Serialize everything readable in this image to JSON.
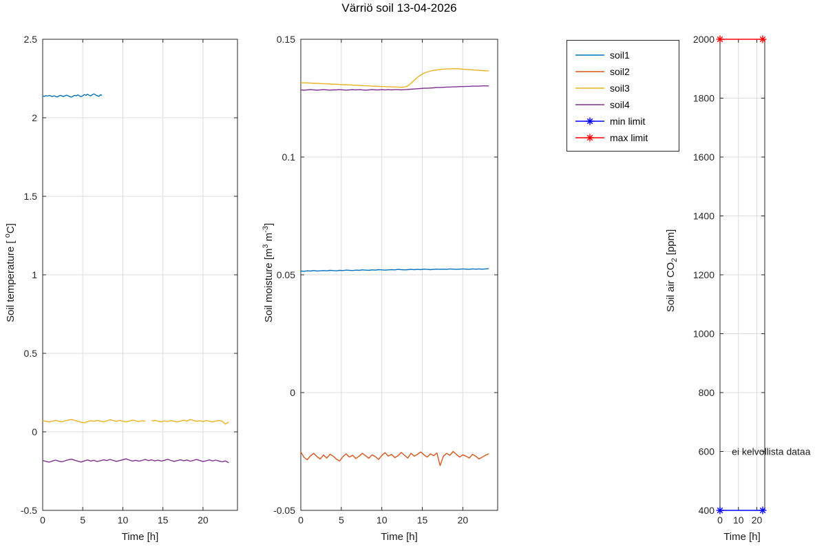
{
  "title": "Värriö soil 13-04-2026",
  "legend": {
    "entries": [
      {
        "label": "soil1",
        "color": "#0072BD",
        "marker": false
      },
      {
        "label": "soil2",
        "color": "#D95319",
        "marker": false
      },
      {
        "label": "soil3",
        "color": "#EDB120",
        "marker": false
      },
      {
        "label": "soil4",
        "color": "#7E2F8E",
        "marker": false
      },
      {
        "label": "min limit",
        "color": "#0000FF",
        "marker": true
      },
      {
        "label": "max limit",
        "color": "#FF0000",
        "marker": true
      }
    ]
  },
  "chart_data": [
    {
      "type": "line",
      "name": "soil-temperature",
      "xlabel": "Time [h]",
      "ylabel_text": "Soil temperature [ °C]",
      "ylabel_parts": [
        {
          "t": "Soil temperature [ "
        },
        {
          "t": "o",
          "sup": true
        },
        {
          "t": "C]"
        }
      ],
      "xlim": [
        0,
        24.3
      ],
      "ylim": [
        -0.5,
        2.5
      ],
      "xticks": [
        0,
        5,
        10,
        15,
        20
      ],
      "xtick_labels": [
        "0",
        "5",
        "10",
        "15",
        "20"
      ],
      "yticks": [
        -0.5,
        0,
        0.5,
        1,
        1.5,
        2,
        2.5
      ],
      "ytick_labels": [
        "-0.5",
        "0",
        "0.5",
        "1",
        "1.5",
        "2",
        "2.5"
      ],
      "grid": true,
      "series": [
        {
          "name": "soil1",
          "color": "#0072BD",
          "x0": 0,
          "dx": 0.2,
          "y": [
            2.14,
            2.136,
            2.141,
            2.138,
            2.142,
            2.139,
            2.135,
            2.14,
            2.137,
            2.132,
            2.138,
            2.143,
            2.139,
            2.135,
            2.141,
            2.144,
            2.139,
            2.135,
            2.131,
            2.138,
            2.143,
            2.14,
            2.146,
            2.139,
            2.134,
            2.141,
            2.148,
            2.143,
            2.15,
            2.144,
            2.139,
            2.147,
            2.152,
            2.146,
            2.141,
            2.137,
            2.146,
            2.143
          ]
        },
        {
          "name": "soil3",
          "color": "#EDB120",
          "x0": 0,
          "dx": 0.4,
          "y": [
            0.071,
            0.067,
            0.063,
            0.068,
            0.073,
            0.068,
            0.064,
            0.07,
            0.075,
            0.079,
            0.073,
            0.067,
            0.062,
            0.058,
            0.065,
            0.071,
            0.067,
            0.073,
            0.069,
            0.064,
            0.07,
            0.077,
            0.072,
            0.067,
            0.073,
            0.068,
            0.063,
            0.069,
            0.075,
            0.07,
            0.065,
            0.071,
            0.067,
            null,
            0.07,
            0.073,
            0.068,
            0.064,
            0.07,
            0.066,
            0.072,
            0.068,
            0.063,
            0.069,
            0.074,
            0.068,
            0.079,
            0.073,
            0.067,
            0.071,
            0.065,
            0.072,
            0.068,
            0.063,
            0.069,
            0.073,
            0.067,
            0.049,
            0.064
          ]
        },
        {
          "name": "soil4",
          "color": "#7E2F8E",
          "x0": 0,
          "dx": 0.4,
          "y": [
            -0.182,
            -0.188,
            -0.193,
            -0.186,
            -0.18,
            -0.187,
            -0.191,
            -0.184,
            -0.178,
            -0.174,
            -0.181,
            -0.187,
            -0.192,
            -0.185,
            -0.179,
            -0.186,
            -0.181,
            -0.189,
            -0.184,
            -0.178,
            -0.183,
            -0.176,
            -0.182,
            -0.188,
            -0.183,
            -0.177,
            -0.172,
            -0.18,
            -0.186,
            -0.181,
            -0.187,
            -0.182,
            -0.176,
            -0.183,
            -0.178,
            -0.185,
            -0.18,
            -0.186,
            -0.181,
            -0.175,
            -0.182,
            -0.188,
            -0.183,
            -0.178,
            -0.184,
            -0.179,
            -0.187,
            -0.182,
            -0.176,
            -0.183,
            -0.189,
            -0.184,
            -0.179,
            -0.185,
            -0.18,
            -0.186,
            -0.191,
            -0.185,
            -0.197
          ]
        }
      ]
    },
    {
      "type": "line",
      "name": "soil-moisture",
      "xlabel": "Time [h]",
      "ylabel_text": "Soil moisture [m3 m-3]",
      "ylabel_parts": [
        {
          "t": "Soil moisture [m"
        },
        {
          "t": "3",
          "sup": true
        },
        {
          "t": " m"
        },
        {
          "t": "-3",
          "sup": true
        },
        {
          "t": "]"
        }
      ],
      "xlim": [
        0,
        24.3
      ],
      "ylim": [
        -0.05,
        0.15
      ],
      "xticks": [
        0,
        5,
        10,
        15,
        20
      ],
      "xtick_labels": [
        "0",
        "5",
        "10",
        "15",
        "20"
      ],
      "yticks": [
        -0.05,
        0,
        0.05,
        0.1,
        0.15
      ],
      "ytick_labels": [
        "-0.05",
        "0",
        "0.05",
        "0.1",
        "0.15"
      ],
      "grid": true,
      "series": [
        {
          "name": "soil1",
          "color": "#0072BD",
          "x0": 0,
          "dx": 0.4,
          "y": [
            0.0516,
            0.0515,
            0.0517,
            0.0516,
            0.0518,
            0.0516,
            0.0517,
            0.0518,
            0.0517,
            0.0519,
            0.0518,
            0.0517,
            0.0519,
            0.0518,
            0.052,
            0.0519,
            0.0518,
            0.052,
            0.0519,
            0.0521,
            0.052,
            0.0519,
            0.0521,
            0.052,
            0.0522,
            0.0521,
            0.052,
            0.0521,
            0.0522,
            0.0521,
            0.0523,
            0.0522,
            0.0521,
            0.0522,
            0.0523,
            0.0522,
            0.0523,
            0.0522,
            0.0524,
            0.0523,
            0.0522,
            0.0523,
            0.0524,
            0.0523,
            0.0524,
            0.0523,
            0.0525,
            0.0524,
            0.0523,
            0.0524,
            0.0525,
            0.0524,
            0.0523,
            0.0525,
            0.0524,
            0.0525,
            0.0524,
            0.0525,
            0.0526
          ]
        },
        {
          "name": "soil2",
          "color": "#D95319",
          "x0": 0,
          "dx": 0.4,
          "y": [
            -0.0252,
            -0.0275,
            -0.0285,
            -0.0268,
            -0.0258,
            -0.0272,
            -0.0282,
            -0.0265,
            -0.0278,
            -0.0262,
            -0.027,
            -0.0283,
            -0.029,
            -0.0272,
            -0.026,
            -0.0274,
            -0.0266,
            -0.028,
            -0.027,
            -0.0258,
            -0.0268,
            -0.0279,
            -0.0264,
            -0.0272,
            -0.0284,
            -0.0267,
            -0.0255,
            -0.027,
            -0.0262,
            -0.0276,
            -0.0268,
            -0.0254,
            -0.0266,
            -0.0278,
            -0.0258,
            -0.027,
            -0.0262,
            -0.0252,
            -0.0264,
            -0.0274,
            -0.026,
            -0.0268,
            -0.0256,
            -0.031,
            -0.027,
            -0.0258,
            -0.0266,
            -0.025,
            -0.0262,
            -0.0274,
            -0.0264,
            -0.027,
            -0.0278,
            -0.0262,
            -0.027,
            -0.0282,
            -0.0274,
            -0.0266,
            -0.026
          ]
        },
        {
          "name": "soil3",
          "color": "#EDB120",
          "x0": 0,
          "dx": 0.4,
          "y": [
            0.1316,
            0.1315,
            0.1315,
            0.1314,
            0.1313,
            0.1313,
            0.1312,
            0.1311,
            0.1311,
            0.131,
            0.1309,
            0.1309,
            0.1308,
            0.1307,
            0.1307,
            0.1306,
            0.1305,
            0.1305,
            0.1304,
            0.1303,
            0.1303,
            0.1302,
            0.1301,
            0.1301,
            0.13,
            0.1299,
            0.1299,
            0.1298,
            0.1298,
            0.1297,
            0.1297,
            0.1296,
            0.1297,
            0.1302,
            0.1313,
            0.1326,
            0.1338,
            0.1348,
            0.1356,
            0.1361,
            0.1365,
            0.1368,
            0.137,
            0.1372,
            0.1373,
            0.1374,
            0.1374,
            0.1375,
            0.1375,
            0.1374,
            0.1373,
            0.1372,
            0.1371,
            0.137,
            0.1369,
            0.1368,
            0.1367,
            0.1366,
            0.1366
          ]
        },
        {
          "name": "soil4",
          "color": "#7E2F8E",
          "x0": 0,
          "dx": 0.4,
          "y": [
            0.1285,
            0.1284,
            0.1285,
            0.1286,
            0.1285,
            0.1284,
            0.1285,
            0.1286,
            0.1285,
            0.1284,
            0.1285,
            0.1285,
            0.1286,
            0.1285,
            0.1284,
            0.1285,
            0.1286,
            0.1285,
            0.1286,
            0.1285,
            0.1284,
            0.1285,
            0.1286,
            0.1285,
            0.1285,
            0.1286,
            0.1285,
            0.1286,
            0.1285,
            0.1286,
            0.1286,
            0.1285,
            0.1286,
            0.1287,
            0.1288,
            0.1289,
            0.129,
            0.1291,
            0.1292,
            0.1292,
            0.1293,
            0.1294,
            0.1295,
            0.1295,
            0.1296,
            0.1297,
            0.1297,
            0.1298,
            0.1298,
            0.1299,
            0.1299,
            0.13,
            0.13,
            0.1301,
            0.1301,
            0.1301,
            0.1302,
            0.1302,
            0.1302
          ]
        }
      ]
    },
    {
      "type": "line",
      "name": "soil-air-co2",
      "xlabel": "Time [h]",
      "ylabel_text": "Soil air CO2 [ppm]",
      "ylabel_parts": [
        {
          "t": "Soil air CO"
        },
        {
          "t": "2",
          "sub": true
        },
        {
          "t": " [ppm]"
        }
      ],
      "xlim": [
        0,
        24.3
      ],
      "ylim": [
        400,
        2000
      ],
      "xticks": [
        0,
        10,
        20
      ],
      "xtick_labels": [
        "0",
        "10",
        "20"
      ],
      "yticks": [
        400,
        600,
        800,
        1000,
        1200,
        1400,
        1600,
        1800,
        2000
      ],
      "ytick_labels": [
        "400",
        "600",
        "800",
        "1000",
        "1200",
        "1400",
        "1600",
        "1800",
        "2000"
      ],
      "grid": true,
      "series": [
        {
          "name": "max limit",
          "color": "#FF0000",
          "points": [
            [
              0,
              2000
            ],
            [
              23.2,
              2000
            ]
          ],
          "marker": "asterisk"
        },
        {
          "name": "min limit",
          "color": "#0000FF",
          "points": [
            [
              0,
              400
            ],
            [
              23.2,
              400
            ]
          ],
          "marker": "asterisk"
        }
      ],
      "annotations": [
        {
          "text": "ei kelvollista dataa",
          "x": 6.4,
          "y": 600
        }
      ]
    }
  ]
}
